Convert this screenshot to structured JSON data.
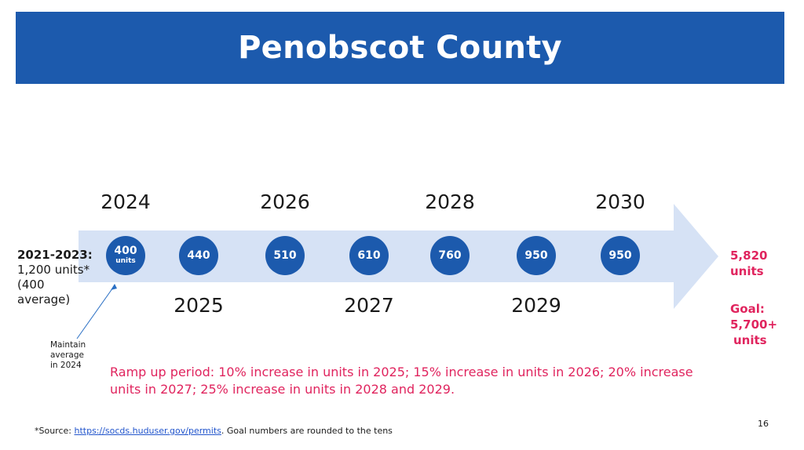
{
  "title": "Penobscot County",
  "left_note": {
    "heading": "2021-2023:",
    "line1": "1,200 units*",
    "line2": "(400",
    "line3": "average)"
  },
  "maintain_note": [
    "Maintain",
    "average",
    "in 2024"
  ],
  "milestones": [
    {
      "year": "2024",
      "value": "400",
      "unit": "units"
    },
    {
      "year": "2025",
      "value": "440",
      "unit": ""
    },
    {
      "year": "2026",
      "value": "510",
      "unit": ""
    },
    {
      "year": "2027",
      "value": "610",
      "unit": ""
    },
    {
      "year": "2028",
      "value": "760",
      "unit": ""
    },
    {
      "year": "2029",
      "value": "950",
      "unit": ""
    },
    {
      "year": "2030",
      "value": "950",
      "unit": ""
    }
  ],
  "total": {
    "value": "5,820",
    "unit": "units"
  },
  "goal": {
    "label": "Goal:",
    "value": "5,700+",
    "unit": "units"
  },
  "ramp_text": "Ramp up period: 10% increase in units in 2025; 15% increase in units in 2026; 20% increase units in 2027; 25% increase in units in 2028 and 2029.",
  "footer": {
    "source_prefix": "*Source: ",
    "source_link": "https://socds.huduser.gov/permits",
    "source_suffix": ". Goal numbers are rounded to the tens",
    "page_number": "16"
  },
  "colors": {
    "header": "#1c5aad",
    "arrow": "#d6e2f5",
    "circle": "#1c5aad",
    "accent": "#e0245e"
  }
}
